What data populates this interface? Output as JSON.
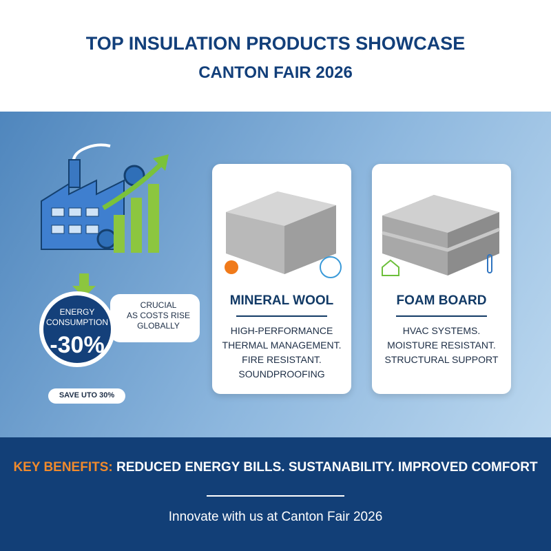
{
  "header": {
    "title": "TOP INSULATION PRODUCTS SHOWCASE",
    "subtitle": "CANTON FAIR 2026"
  },
  "energy": {
    "label_lines": [
      "ENERGY",
      "CONSUMPTION"
    ],
    "value": "-30%",
    "callout_lines": [
      "CRUCIAL",
      "AS COSTS RISE",
      "GLOBALLY"
    ],
    "note": "SAVE UTO 30%"
  },
  "products": [
    {
      "name": "MINERAL WOOL",
      "features": [
        "HIGH-PERFORMANCE",
        "THERMAL MANAGEMENT.",
        "FIRE RESISTANT.",
        "SOUNDPROOFING"
      ]
    },
    {
      "name": "FOAM BOARD",
      "features": [
        "HVAC SYSTEMS.",
        "MOISTURE RESISTANT.",
        "STRUCTURAL SUPPORT"
      ]
    }
  ],
  "footer": {
    "benefits_label": "KEY BENEFITS:",
    "benefits_text": "REDUCED ENERGY BILLS. SUSTANABILITY. IMPROVED COMFORT",
    "tagline": "Innovate with us at Canton Fair 2026"
  }
}
